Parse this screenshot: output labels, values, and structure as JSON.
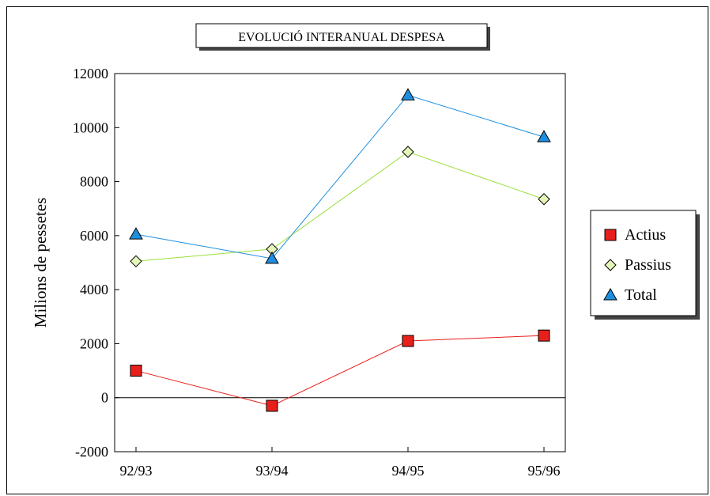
{
  "chart_data": {
    "type": "line",
    "title": "EVOLUCIÓ INTERANUAL DESPESA",
    "xlabel": "",
    "ylabel": "Milions de pessetes",
    "categories": [
      "92/93",
      "93/94",
      "94/95",
      "95/96"
    ],
    "ylim": [
      -2000,
      12000
    ],
    "yticks": [
      "-2000",
      "0",
      "2000",
      "4000",
      "6000",
      "8000",
      "10000",
      "12000"
    ],
    "grid": false,
    "legend_position": "right",
    "series": [
      {
        "name": "Actius",
        "values": [
          1000,
          -300,
          2100,
          2300
        ],
        "color": "#e8201c",
        "marker": "square"
      },
      {
        "name": "Passius",
        "values": [
          5050,
          5500,
          9100,
          7350
        ],
        "color": "#9be03a",
        "marker": "diamond"
      },
      {
        "name": "Total",
        "values": [
          6050,
          5150,
          11200,
          9650
        ],
        "color": "#1e8fe0",
        "marker": "triangle"
      }
    ]
  }
}
